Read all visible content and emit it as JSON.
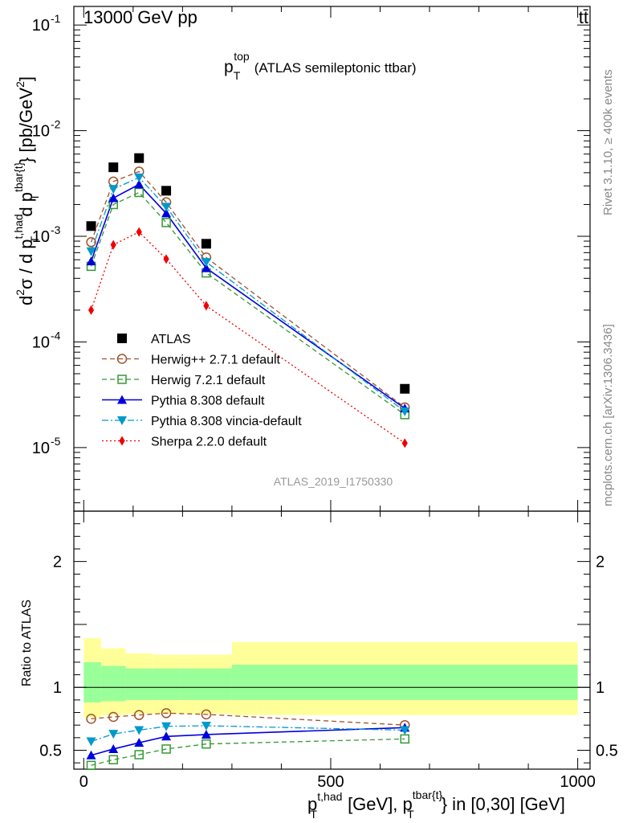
{
  "header": {
    "energy_label": "13000 GeV pp",
    "process_label": "tt̄"
  },
  "side_labels": {
    "rivet": "Rivet 3.1.10, ≥ 400k events",
    "mcplots": "mcplots.cern.ch [arXiv:1306.3436]"
  },
  "chart_data": [
    {
      "type": "scatter",
      "panel": "main",
      "title": "(ATLAS semileptonic ttbar)",
      "title_symbol": "p",
      "title_sub": "T",
      "title_sup": "top",
      "watermark": "ATLAS_2019_I1750330",
      "yaxis": {
        "scale": "log",
        "ylim": [
          2.5e-06,
          0.15
        ],
        "label_parts": [
          "d",
          "2",
          "σ / d p",
          "t,had",
          "T",
          " d p",
          "tbar{t}",
          "T",
          "} [pb/GeV",
          "2",
          "]"
        ],
        "tick_values": [
          0.1,
          0.01,
          0.001,
          0.0001,
          1e-05
        ],
        "tick_labels": [
          {
            "base": "10",
            "exp": "-1"
          },
          {
            "base": "10",
            "exp": "-2"
          },
          {
            "base": "10",
            "exp": "-3"
          },
          {
            "base": "10",
            "exp": "-4"
          },
          {
            "base": "10",
            "exp": "-5"
          }
        ]
      },
      "x": [
        15,
        60,
        112,
        167,
        248,
        650
      ],
      "series": [
        {
          "name": "ATLAS",
          "color": "#000000",
          "marker": "square",
          "line": "none",
          "values": [
            0.00125,
            0.0045,
            0.0055,
            0.0027,
            0.00085,
            3.6e-05
          ]
        },
        {
          "name": "Herwig++ 2.7.1 default",
          "color": "#a0522d",
          "marker": "circle-open",
          "line": "dashed",
          "values": [
            0.00088,
            0.0033,
            0.0041,
            0.0021,
            0.00063,
            2.4e-05
          ]
        },
        {
          "name": "Herwig 7.2.1 default",
          "color": "#339933",
          "marker": "square-open",
          "line": "dashed",
          "values": [
            0.00052,
            0.002,
            0.0026,
            0.00135,
            0.00045,
            2.05e-05
          ]
        },
        {
          "name": "Pythia 8.308 default",
          "color": "#0000dd",
          "marker": "triangle-up",
          "line": "solid",
          "values": [
            0.00058,
            0.0023,
            0.0031,
            0.00165,
            0.0005,
            2.35e-05
          ]
        },
        {
          "name": "Pythia 8.308 vincia-default",
          "color": "#0099cc",
          "marker": "triangle-down",
          "line": "dashdot",
          "values": [
            0.00072,
            0.0028,
            0.0036,
            0.0019,
            0.00057,
            2.2e-05
          ]
        },
        {
          "name": "Sherpa 2.2.0 default",
          "color": "#ee0000",
          "marker": "diamond",
          "line": "dotted",
          "values": [
            0.0002,
            0.00083,
            0.0011,
            0.00061,
            0.00022,
            1.1e-05
          ]
        }
      ],
      "legend_position": "lower-left"
    },
    {
      "type": "line",
      "panel": "ratio",
      "ylabel": "Ratio to ATLAS",
      "ylim": [
        0.35,
        2.4
      ],
      "tick_labels": [
        "0.5",
        "1",
        "2"
      ],
      "tick_values": [
        0.5,
        1,
        2
      ],
      "x": [
        15,
        60,
        112,
        167,
        248,
        650
      ],
      "bins": [
        0,
        35,
        85,
        140,
        195,
        300,
        1000
      ],
      "band_inner": {
        "color": "#99ff99",
        "low": [
          0.88,
          0.89,
          0.9,
          0.9,
          0.9,
          0.9
        ],
        "high": [
          1.2,
          1.17,
          1.15,
          1.15,
          1.15,
          1.18
        ]
      },
      "band_outer": {
        "color": "#ffff99",
        "low": [
          0.76,
          0.78,
          0.79,
          0.79,
          0.79,
          0.78
        ],
        "high": [
          1.39,
          1.31,
          1.27,
          1.26,
          1.26,
          1.36
        ]
      },
      "series": [
        {
          "name": "Herwig++ 2.7.1 default",
          "color": "#a0522d",
          "marker": "circle-open",
          "line": "dashed",
          "values": [
            0.75,
            0.765,
            0.78,
            0.795,
            0.785,
            0.7
          ]
        },
        {
          "name": "Herwig 7.2.1 default",
          "color": "#339933",
          "marker": "square-open",
          "line": "dashed",
          "values": [
            0.38,
            0.425,
            0.465,
            0.51,
            0.55,
            0.59
          ]
        },
        {
          "name": "Pythia 8.308 default",
          "color": "#0000dd",
          "marker": "triangle-up",
          "line": "solid",
          "values": [
            0.46,
            0.51,
            0.56,
            0.61,
            0.625,
            0.68
          ]
        },
        {
          "name": "Pythia 8.308 vincia-default",
          "color": "#0099cc",
          "marker": "triangle-down",
          "line": "dashdot",
          "values": [
            0.57,
            0.63,
            0.66,
            0.69,
            0.695,
            0.66
          ]
        }
      ]
    }
  ],
  "xaxis": {
    "xlim": [
      -20,
      1025
    ],
    "tick_values": [
      0,
      500,
      1000
    ],
    "tick_labels": [
      "0",
      "500",
      "1000"
    ],
    "label_parts": [
      "p",
      "t,had",
      "T",
      " [GeV], p",
      "tbar{t}",
      "T",
      "} in [0,30] [GeV]"
    ]
  }
}
